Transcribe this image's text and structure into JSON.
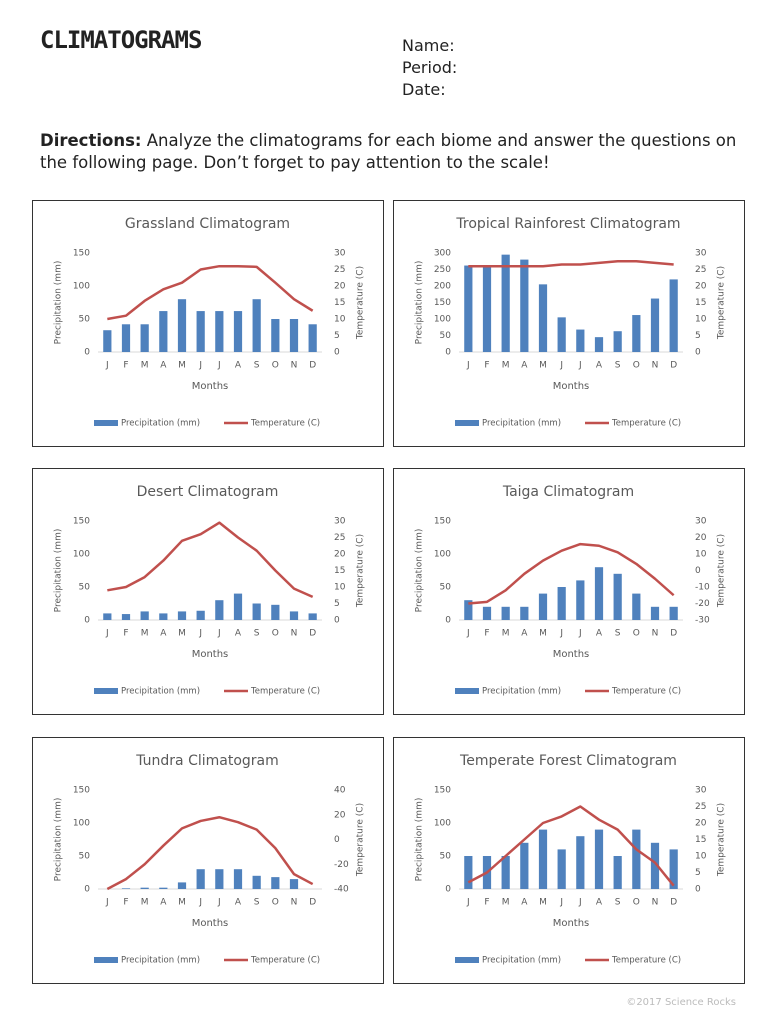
{
  "header": {
    "title": "CLIMATOGRAMS",
    "name_label": "Name:",
    "period_label": "Period:",
    "date_label": "Date:"
  },
  "directions": {
    "label": "Directions:",
    "text": "Analyze the climatograms for each biome and answer the questions on the following page. Don’t forget to pay attention to the scale!"
  },
  "footer": "©2017 Science Rocks",
  "chart_data": [
    {
      "type": "combo",
      "title": "Grassland Climatogram",
      "x_label": "Months",
      "y_label": "Precipitation (mm)",
      "y2_label": "Temperature (C)",
      "categories": [
        "J",
        "F",
        "M",
        "A",
        "M",
        "J",
        "J",
        "A",
        "S",
        "O",
        "N",
        "D"
      ],
      "ylim": [
        0,
        150
      ],
      "yticks": [
        0,
        50,
        100,
        150
      ],
      "y2lim": [
        0,
        30
      ],
      "y2ticks": [
        0,
        5,
        10,
        15,
        20,
        25,
        30
      ],
      "series": [
        {
          "name": "Precipitation (mm)",
          "type": "bar",
          "color": "#4f81bd",
          "values": [
            33,
            42,
            42,
            62,
            80,
            62,
            62,
            62,
            80,
            50,
            50,
            42
          ]
        },
        {
          "name": "Temperature (C)",
          "type": "line",
          "axis": "y2",
          "color": "#c0504d",
          "values": [
            10,
            11,
            15.5,
            19,
            21,
            25,
            26,
            26,
            25.8,
            21,
            16,
            12.5
          ]
        }
      ]
    },
    {
      "type": "combo",
      "title": "Tropical Rainforest Climatogram",
      "x_label": "Months",
      "y_label": "Precipitation (mm)",
      "y2_label": "Temperature (C)",
      "categories": [
        "J",
        "F",
        "M",
        "A",
        "M",
        "J",
        "J",
        "A",
        "S",
        "O",
        "N",
        "D"
      ],
      "ylim": [
        0,
        300
      ],
      "yticks": [
        0,
        50,
        100,
        150,
        200,
        250,
        300
      ],
      "y2lim": [
        0,
        30
      ],
      "y2ticks": [
        0,
        5,
        10,
        15,
        20,
        25,
        30
      ],
      "series": [
        {
          "name": "Precipitation (mm)",
          "type": "bar",
          "color": "#4f81bd",
          "values": [
            262,
            260,
            295,
            280,
            205,
            105,
            68,
            45,
            63,
            112,
            162,
            220
          ]
        },
        {
          "name": "Temperature (C)",
          "type": "line",
          "axis": "y2",
          "color": "#c0504d",
          "values": [
            26,
            26,
            26,
            26,
            26,
            26.5,
            26.5,
            27,
            27.5,
            27.5,
            27,
            26.5
          ]
        }
      ]
    },
    {
      "type": "combo",
      "title": "Desert Climatogram",
      "x_label": "Months",
      "y_label": "Precipitation (mm)",
      "y2_label": "Temperature (C)",
      "categories": [
        "J",
        "F",
        "M",
        "A",
        "M",
        "J",
        "J",
        "A",
        "S",
        "O",
        "N",
        "D"
      ],
      "ylim": [
        0,
        150
      ],
      "yticks": [
        0,
        50,
        100,
        150
      ],
      "y2lim": [
        0,
        30
      ],
      "y2ticks": [
        0,
        5,
        10,
        15,
        20,
        25,
        30
      ],
      "series": [
        {
          "name": "Precipitation (mm)",
          "type": "bar",
          "color": "#4f81bd",
          "values": [
            10,
            9,
            13,
            10,
            13,
            14,
            30,
            40,
            25,
            23,
            13,
            10
          ]
        },
        {
          "name": "Temperature (C)",
          "type": "line",
          "axis": "y2",
          "color": "#c0504d",
          "values": [
            9,
            10,
            13,
            18,
            24,
            26,
            29.5,
            25,
            21,
            15,
            9.5,
            7
          ]
        }
      ]
    },
    {
      "type": "combo",
      "title": "Taiga Climatogram",
      "x_label": "Months",
      "y_label": "Precipitation (mm)",
      "y2_label": "Temperature (C)",
      "categories": [
        "J",
        "F",
        "M",
        "A",
        "M",
        "J",
        "J",
        "A",
        "S",
        "O",
        "N",
        "D"
      ],
      "ylim": [
        0,
        150
      ],
      "yticks": [
        0,
        50,
        100,
        150
      ],
      "y2lim": [
        -30,
        30
      ],
      "y2ticks": [
        -30,
        -20,
        -10,
        0,
        10,
        20,
        30
      ],
      "series": [
        {
          "name": "Precipitation (mm)",
          "type": "bar",
          "color": "#4f81bd",
          "values": [
            30,
            20,
            20,
            20,
            40,
            50,
            60,
            80,
            70,
            40,
            20,
            20
          ]
        },
        {
          "name": "Temperature (C)",
          "type": "line",
          "axis": "y2",
          "color": "#c0504d",
          "values": [
            -20,
            -19,
            -12,
            -2,
            6,
            12,
            16,
            15,
            11,
            4,
            -5,
            -15
          ]
        }
      ]
    },
    {
      "type": "combo",
      "title": "Tundra Climatogram",
      "x_label": "Months",
      "y_label": "Precipitation (mm)",
      "y2_label": "Temperature (C)",
      "categories": [
        "J",
        "F",
        "M",
        "A",
        "M",
        "J",
        "J",
        "A",
        "S",
        "O",
        "N",
        "D"
      ],
      "ylim": [
        0,
        150
      ],
      "yticks": [
        0,
        50,
        100,
        150
      ],
      "y2lim": [
        -40,
        40
      ],
      "y2ticks": [
        -40,
        -20,
        0,
        20,
        40
      ],
      "series": [
        {
          "name": "Precipitation (mm)",
          "type": "bar",
          "color": "#4f81bd",
          "values": [
            0,
            1,
            2,
            2,
            10,
            30,
            30,
            30,
            20,
            18,
            15,
            0
          ]
        },
        {
          "name": "Temperature (C)",
          "type": "line",
          "axis": "y2",
          "color": "#c0504d",
          "values": [
            -40,
            -32,
            -20,
            -5,
            9,
            15,
            18,
            14,
            8,
            -7,
            -28,
            -36
          ]
        }
      ]
    },
    {
      "type": "combo",
      "title": "Temperate Forest Climatogram",
      "x_label": "Months",
      "y_label": "Precipitation (mm)",
      "y2_label": "Temperature (C)",
      "categories": [
        "J",
        "F",
        "M",
        "A",
        "M",
        "J",
        "J",
        "A",
        "S",
        "O",
        "N",
        "D"
      ],
      "ylim": [
        0,
        150
      ],
      "yticks": [
        0,
        50,
        100,
        150
      ],
      "y2lim": [
        0,
        30
      ],
      "y2ticks": [
        0,
        5,
        10,
        15,
        20,
        25,
        30
      ],
      "series": [
        {
          "name": "Precipitation (mm)",
          "type": "bar",
          "color": "#4f81bd",
          "values": [
            50,
            50,
            50,
            70,
            90,
            60,
            80,
            90,
            50,
            90,
            70,
            60
          ]
        },
        {
          "name": "Temperature (C)",
          "type": "line",
          "axis": "y2",
          "color": "#c0504d",
          "values": [
            2,
            5,
            10,
            15,
            20,
            22,
            25,
            21,
            18,
            12,
            8,
            1
          ]
        }
      ]
    }
  ]
}
